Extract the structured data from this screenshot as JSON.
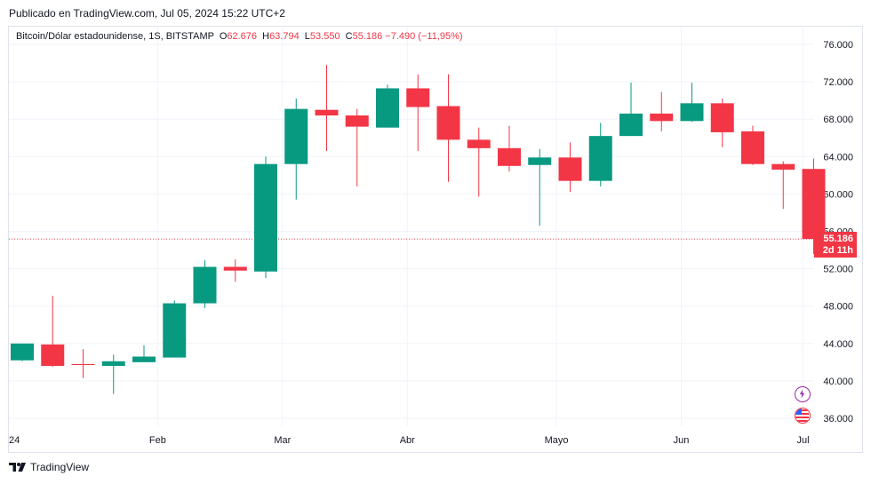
{
  "published": "Publicado en TradingView.com, Jul 05, 2024 15:22 UTC+2",
  "legend": {
    "symbol": "Bitcoin/Dólar estadounidense, 1S, BITSTAMP",
    "o_label": "O",
    "o": "62.676",
    "h_label": "H",
    "h": "63.794",
    "l_label": "L",
    "l": "53.550",
    "c_label": "C",
    "c": "55.186",
    "change": "−7.490 (−11,95%)"
  },
  "price_badge": {
    "price": "55.186",
    "countdown": "2d 11h"
  },
  "brand": "TradingView",
  "icons": {
    "flash": "lightning-icon",
    "flag": "us-flag-icon"
  },
  "colors": {
    "up": "#089981",
    "down": "#f23645",
    "grid": "#f0f3fa",
    "text": "#131722"
  },
  "chart_data": {
    "type": "candlestick",
    "title": "Bitcoin/Dólar estadounidense, 1S, BITSTAMP",
    "y_ticks": [
      "36.000",
      "40.000",
      "44.000",
      "48.000",
      "52.000",
      "56.000",
      "60.000",
      "64.000",
      "68.000",
      "72.000",
      "76.000"
    ],
    "ylim": [
      34000,
      78500
    ],
    "x_tick_labels": [
      {
        "label": "24",
        "index": 0
      },
      {
        "label": "Feb",
        "index": 4.8
      },
      {
        "label": "Mar",
        "index": 8.9
      },
      {
        "label": "Abr",
        "index": 13.0
      },
      {
        "label": "Mayo",
        "index": 17.9
      },
      {
        "label": "Jun",
        "index": 22.0
      },
      {
        "label": "Jul",
        "index": 26.0
      }
    ],
    "last_price": 55186,
    "candles": [
      {
        "o": 42200,
        "h": 44000,
        "l": 42100,
        "c": 44000
      },
      {
        "o": 43900,
        "h": 49100,
        "l": 41500,
        "c": 41600
      },
      {
        "o": 41800,
        "h": 43400,
        "l": 40300,
        "c": 41700
      },
      {
        "o": 41600,
        "h": 42800,
        "l": 38600,
        "c": 42100
      },
      {
        "o": 42000,
        "h": 43800,
        "l": 42000,
        "c": 42600
      },
      {
        "o": 42500,
        "h": 48600,
        "l": 42500,
        "c": 48300
      },
      {
        "o": 48300,
        "h": 52900,
        "l": 47800,
        "c": 52200
      },
      {
        "o": 52200,
        "h": 53000,
        "l": 50600,
        "c": 51800
      },
      {
        "o": 51700,
        "h": 64000,
        "l": 51000,
        "c": 63200
      },
      {
        "o": 63200,
        "h": 70200,
        "l": 59400,
        "c": 69100
      },
      {
        "o": 69000,
        "h": 73800,
        "l": 64600,
        "c": 68400
      },
      {
        "o": 68400,
        "h": 69100,
        "l": 60800,
        "c": 67200
      },
      {
        "o": 67100,
        "h": 71700,
        "l": 67100,
        "c": 71300
      },
      {
        "o": 71300,
        "h": 72800,
        "l": 64600,
        "c": 69300
      },
      {
        "o": 69400,
        "h": 72800,
        "l": 61300,
        "c": 65800
      },
      {
        "o": 65800,
        "h": 67100,
        "l": 59700,
        "c": 64900
      },
      {
        "o": 64900,
        "h": 67300,
        "l": 62400,
        "c": 63000
      },
      {
        "o": 63100,
        "h": 64800,
        "l": 56600,
        "c": 63900
      },
      {
        "o": 63900,
        "h": 65500,
        "l": 60200,
        "c": 61400
      },
      {
        "o": 61400,
        "h": 67600,
        "l": 60800,
        "c": 66200
      },
      {
        "o": 66200,
        "h": 71900,
        "l": 66200,
        "c": 68600
      },
      {
        "o": 68600,
        "h": 70900,
        "l": 66700,
        "c": 67800
      },
      {
        "o": 67800,
        "h": 71900,
        "l": 67700,
        "c": 69700
      },
      {
        "o": 69700,
        "h": 70200,
        "l": 65000,
        "c": 66600
      },
      {
        "o": 66700,
        "h": 67300,
        "l": 63100,
        "c": 63200
      },
      {
        "o": 63200,
        "h": 63500,
        "l": 58400,
        "c": 62600
      },
      {
        "o": 62676,
        "h": 63794,
        "l": 53550,
        "c": 55186
      }
    ]
  }
}
